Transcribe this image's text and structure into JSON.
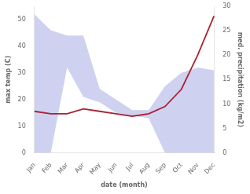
{
  "chart_data": {
    "type": "area",
    "xlabel": "date (month)",
    "ylabel": "max temp (C)",
    "y2label": "med. precipitation (kg/m2)",
    "categories": [
      "Jan",
      "Feb",
      "Mar",
      "Apr",
      "May",
      "Jun",
      "Jul",
      "Aug",
      "Sep",
      "Oct",
      "Nov",
      "Dec"
    ],
    "series": [
      {
        "type": "area",
        "color": "#b3b9e8",
        "values": [
          52,
          46,
          44,
          44,
          24,
          20,
          16,
          16,
          25,
          30,
          32,
          31
        ],
        "lower": [
          0,
          0,
          32,
          21,
          19,
          15,
          14,
          13,
          0,
          0,
          0,
          0
        ]
      },
      {
        "type": "line",
        "color": "#aa2233",
        "axis": "y2",
        "values": [
          8.5,
          8.0,
          8.0,
          9.0,
          8.5,
          8.0,
          7.5,
          8.0,
          9.5,
          13.0,
          20.0,
          28.0
        ]
      }
    ],
    "ylim": [
      0,
      55
    ],
    "yticks": [
      0,
      10,
      20,
      30,
      40,
      50
    ],
    "y2lim": [
      0,
      30
    ],
    "y2ticks": [
      0,
      5,
      10,
      15,
      20,
      25,
      30
    ],
    "grid": false
  }
}
